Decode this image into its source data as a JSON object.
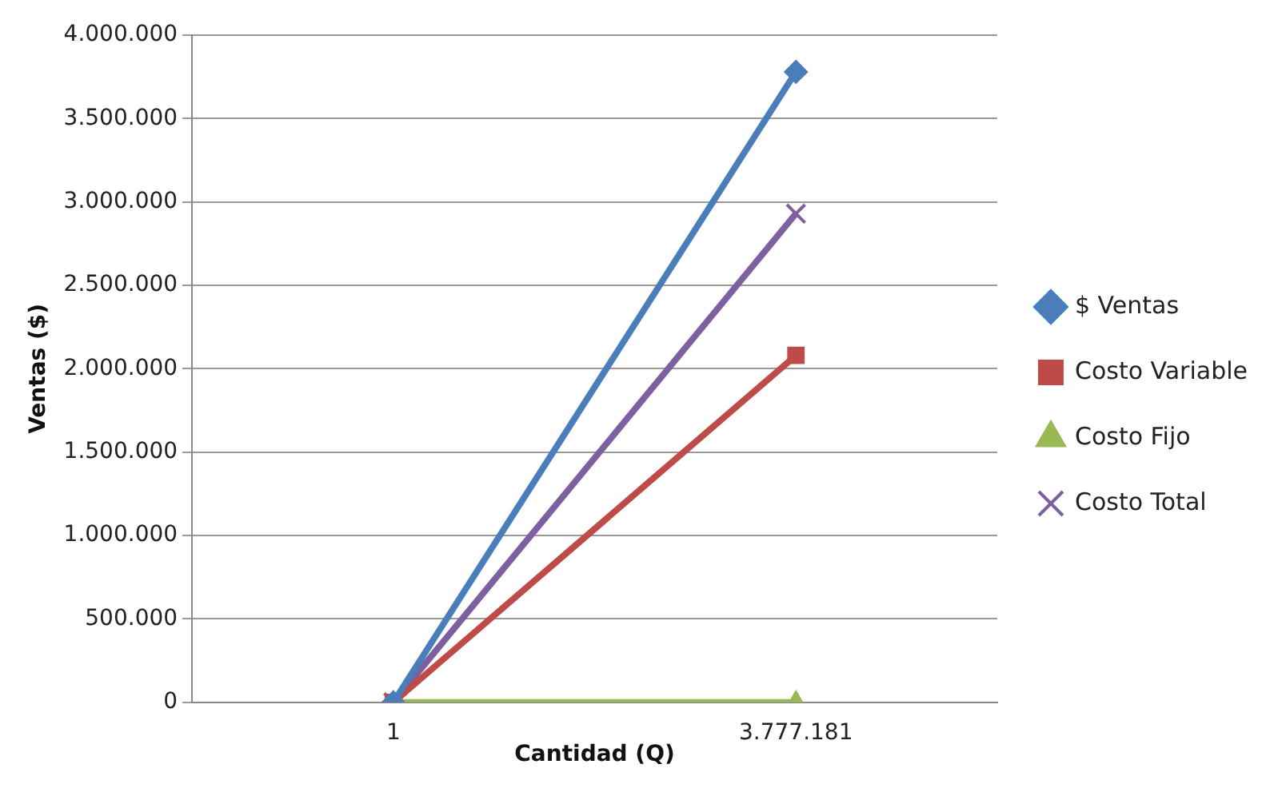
{
  "chart_data": {
    "type": "line",
    "xlabel": "Cantidad (Q)",
    "ylabel": "Ventas ($)",
    "categories": [
      "1",
      "3.777.181"
    ],
    "series": [
      {
        "name": "$ Ventas",
        "color": "#4a7ebb",
        "marker": "diamond",
        "values": [
          0,
          3780000
        ]
      },
      {
        "name": "Costo Variable",
        "color": "#be4b48",
        "marker": "square",
        "values": [
          0,
          2080000
        ]
      },
      {
        "name": "Costo Fijo",
        "color": "#98b954",
        "marker": "triangle",
        "values": [
          0,
          0
        ]
      },
      {
        "name": "Costo Total",
        "color": "#7d60a0",
        "marker": "cross",
        "values": [
          0,
          2930000
        ]
      }
    ],
    "ylim": [
      0,
      4000000
    ],
    "yticks": [
      {
        "value": 0,
        "label": "0"
      },
      {
        "value": 500000,
        "label": "500.000"
      },
      {
        "value": 1000000,
        "label": "1.000.000"
      },
      {
        "value": 1500000,
        "label": "1.500.000"
      },
      {
        "value": 2000000,
        "label": "2.000.000"
      },
      {
        "value": 2500000,
        "label": "2.500.000"
      },
      {
        "value": 3000000,
        "label": "3.000.000"
      },
      {
        "value": 3500000,
        "label": "3.500.000"
      },
      {
        "value": 4000000,
        "label": "4.000.000"
      }
    ],
    "grid": "y",
    "legend": "right",
    "line_style": "solid"
  }
}
